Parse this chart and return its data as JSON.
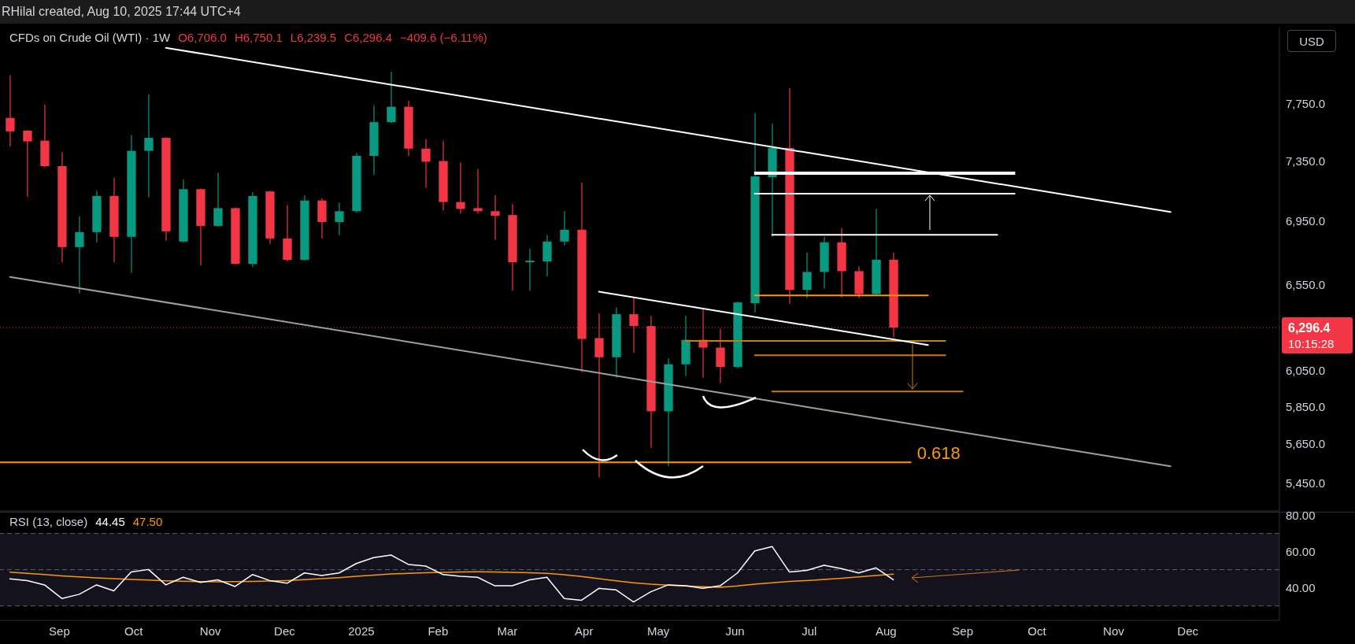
{
  "chart_data": [
    {
      "type": "candlestick",
      "title": "CFDs on Crude Oil (WTI) · 1W",
      "ylabel": "USD",
      "annotations": [
        "RHilal created, Aug 10, 2025 17:44 UTC+4",
        "O6,706.0",
        "H6,750.1",
        "L6,239.5",
        "C6,296.4",
        "−409.6 (−6.11%)",
        "10:15:28"
      ],
      "x": [
        "2024-08-12",
        "2024-08-19",
        "2024-08-26",
        "2024-09-02",
        "2024-09-09",
        "2024-09-16",
        "2024-09-23",
        "2024-09-30",
        "2024-10-07",
        "2024-10-14",
        "2024-10-21",
        "2024-10-28",
        "2024-11-04",
        "2024-11-11",
        "2024-11-18",
        "2024-11-25",
        "2024-12-02",
        "2024-12-09",
        "2024-12-16",
        "2024-12-23",
        "2024-12-30",
        "2025-01-06",
        "2025-01-13",
        "2025-01-20",
        "2025-01-27",
        "2025-02-03",
        "2025-02-10",
        "2025-02-17",
        "2025-02-24",
        "2025-03-03",
        "2025-03-10",
        "2025-03-17",
        "2025-03-24",
        "2025-03-31",
        "2025-04-07",
        "2025-04-14",
        "2025-04-21",
        "2025-04-28",
        "2025-05-05",
        "2025-05-12",
        "2025-05-19",
        "2025-05-26",
        "2025-06-02",
        "2025-06-09",
        "2025-06-16",
        "2025-06-23",
        "2025-06-30",
        "2025-07-07",
        "2025-07-14",
        "2025-07-21",
        "2025-07-28",
        "2025-08-04"
      ],
      "ohlc": [
        [
          7650,
          7960,
          7450,
          7555
        ],
        [
          7560,
          7565,
          7110,
          7485
        ],
        [
          7490,
          7745,
          7310,
          7315
        ],
        [
          7315,
          7410,
          6690,
          6785
        ],
        [
          6785,
          6980,
          6500,
          6880
        ],
        [
          6880,
          7150,
          6815,
          7115
        ],
        [
          7115,
          7235,
          6690,
          6850
        ],
        [
          6850,
          7530,
          6625,
          7420
        ],
        [
          7420,
          7820,
          7105,
          7510
        ],
        [
          7510,
          7515,
          6825,
          6885
        ],
        [
          6820,
          7225,
          6815,
          7160
        ],
        [
          7160,
          7165,
          6670,
          6920
        ],
        [
          6920,
          7270,
          6915,
          7035
        ],
        [
          7035,
          7040,
          6675,
          6680
        ],
        [
          6680,
          7140,
          6660,
          7115
        ],
        [
          7145,
          7150,
          6805,
          6840
        ],
        [
          6840,
          7055,
          6695,
          6705
        ],
        [
          6705,
          7120,
          6700,
          7085
        ],
        [
          7085,
          7100,
          6840,
          6945
        ],
        [
          6945,
          7070,
          6860,
          7015
        ],
        [
          7015,
          7405,
          7005,
          7385
        ],
        [
          7385,
          7740,
          7255,
          7620
        ],
        [
          7620,
          7985,
          7615,
          7730
        ],
        [
          7730,
          7775,
          7385,
          7435
        ],
        [
          7435,
          7500,
          7170,
          7345
        ],
        [
          7350,
          7490,
          7020,
          7075
        ],
        [
          7075,
          7340,
          7000,
          7030
        ],
        [
          7035,
          7295,
          7000,
          7015
        ],
        [
          7015,
          7120,
          6830,
          6985
        ],
        [
          6990,
          7060,
          6515,
          6690
        ],
        [
          6690,
          6775,
          6515,
          6700
        ],
        [
          6695,
          6860,
          6605,
          6820
        ],
        [
          6820,
          7015,
          6795,
          6895
        ],
        [
          6895,
          7205,
          6040,
          6230
        ],
        [
          6235,
          6380,
          5480,
          6125
        ],
        [
          6125,
          6415,
          6010,
          6375
        ],
        [
          6375,
          6475,
          6150,
          6305
        ],
        [
          6305,
          6365,
          5630,
          5825
        ],
        [
          5825,
          6120,
          5535,
          6085
        ],
        [
          6085,
          6365,
          6020,
          6225
        ],
        [
          6225,
          6410,
          6010,
          6180
        ],
        [
          6180,
          6290,
          5980,
          6070
        ],
        [
          6070,
          6450,
          6065,
          6445
        ],
        [
          6440,
          7685,
          6385,
          7245
        ],
        [
          7240,
          7610,
          6850,
          7440
        ],
        [
          7440,
          7865,
          6435,
          6520
        ],
        [
          6520,
          6750,
          6470,
          6630
        ],
        [
          6630,
          6850,
          6530,
          6815
        ],
        [
          6815,
          6905,
          6475,
          6635
        ],
        [
          6635,
          6665,
          6470,
          6495
        ],
        [
          6495,
          7030,
          6490,
          6706
        ],
        [
          6706.0,
          6750.1,
          6239.5,
          6296.4
        ]
      ],
      "colors": [
        "#f23645",
        "#f23645",
        "#f23645",
        "#f23645",
        "#089981",
        "#089981",
        "#f23645",
        "#089981",
        "#089981",
        "#f23645",
        "#089981",
        "#f23645",
        "#089981",
        "#f23645",
        "#089981",
        "#f23645",
        "#f23645",
        "#089981",
        "#f23645",
        "#089981",
        "#089981",
        "#089981",
        "#089981",
        "#f23645",
        "#f23645",
        "#f23645",
        "#f23645",
        "#f23645",
        "#f23645",
        "#f23645",
        "#089981",
        "#089981",
        "#089981",
        "#f23645",
        "#f23645",
        "#089981",
        "#f23645",
        "#f23645",
        "#089981",
        "#089981",
        "#f23645",
        "#f23645",
        "#089981",
        "#089981",
        "#089981",
        "#f23645",
        "#089981",
        "#089981",
        "#f23645",
        "#f23645",
        "#089981",
        "#f23645"
      ],
      "series": [
        {
          "type": "line",
          "color": "#ffffff",
          "x": [
            "2024-10-14",
            "2025-11-24"
          ],
          "values": [
            8165,
            7010
          ]
        },
        {
          "type": "line",
          "color": "#9e9e9e",
          "x": [
            "2024-08-12",
            "2025-11-24"
          ],
          "values": [
            6600,
            5535
          ]
        },
        {
          "type": "line",
          "color": "#ffffff",
          "x": [
            "2025-04-07",
            "2025-08-18"
          ],
          "values": [
            6510,
            6195
          ]
        },
        {
          "type": "line",
          "color": "#ffffff",
          "x": [
            "2025-06-09",
            "2025-09-22"
          ],
          "values": [
            7273,
            7273
          ]
        },
        {
          "type": "line",
          "color": "#ffffff",
          "x": [
            "2025-06-09",
            "2025-09-22"
          ],
          "values": [
            7262,
            7262
          ]
        },
        {
          "type": "line",
          "color": "#ffffff",
          "x": [
            "2025-06-09",
            "2025-09-22"
          ],
          "values": [
            7130,
            7130
          ]
        },
        {
          "type": "line",
          "color": "#ffffff",
          "x": [
            "2025-06-16",
            "2025-09-15"
          ],
          "values": [
            6863,
            6863
          ]
        },
        {
          "type": "line",
          "color": "#ff9800",
          "x": [
            "2025-06-09",
            "2025-08-18"
          ],
          "values": [
            6487,
            6487
          ]
        },
        {
          "type": "line",
          "color": "#c77c10",
          "x": [
            "2025-05-12",
            "2025-08-25"
          ],
          "values": [
            6219,
            6219
          ]
        },
        {
          "type": "line",
          "color": "#c77c10",
          "x": [
            "2025-06-09",
            "2025-08-25"
          ],
          "values": [
            6136,
            6136
          ]
        },
        {
          "type": "line",
          "color": "#c77c10",
          "x": [
            "2025-06-16",
            "2025-09-01"
          ],
          "values": [
            5933,
            5933
          ]
        },
        {
          "type": "line",
          "name": "0.618",
          "color": "#ff9800",
          "x": [
            "2024-08-08",
            "2025-08-11"
          ],
          "values": [
            5555,
            5555
          ]
        }
      ],
      "ref_lines": [
        {
          "axis": "y",
          "value": 6296.4,
          "label": "6,296.4",
          "color": "#f23645",
          "line_style": "dotted"
        }
      ],
      "log": "y",
      "xlim": [
        "2024-08-08",
        "2026-01-07"
      ],
      "ylim": [
        5310,
        8320
      ],
      "yticks": [
        {
          "value": 5450,
          "label": "5,450.0"
        },
        {
          "value": 5650,
          "label": "5,650.0"
        },
        {
          "value": 5850,
          "label": "5,850.0"
        },
        {
          "value": 6050,
          "label": "6,050.0"
        },
        {
          "value": 6550,
          "label": "6,550.0"
        },
        {
          "value": 6950,
          "label": "6,950.0"
        },
        {
          "value": 7350,
          "label": "7,350.0"
        },
        {
          "value": 7750,
          "label": "7,750.0"
        }
      ],
      "tick_labels": "y"
    },
    {
      "type": "line",
      "title": "RSI (13, close)",
      "annotations": [
        "44.45",
        "47.50"
      ],
      "x": [
        "2024-08-12",
        "2024-08-19",
        "2024-08-26",
        "2024-09-02",
        "2024-09-09",
        "2024-09-16",
        "2024-09-23",
        "2024-09-30",
        "2024-10-07",
        "2024-10-14",
        "2024-10-21",
        "2024-10-28",
        "2024-11-04",
        "2024-11-11",
        "2024-11-18",
        "2024-11-25",
        "2024-12-02",
        "2024-12-09",
        "2024-12-16",
        "2024-12-23",
        "2024-12-30",
        "2025-01-06",
        "2025-01-13",
        "2025-01-20",
        "2025-01-27",
        "2025-02-03",
        "2025-02-10",
        "2025-02-17",
        "2025-02-24",
        "2025-03-03",
        "2025-03-10",
        "2025-03-17",
        "2025-03-24",
        "2025-03-31",
        "2025-04-07",
        "2025-04-14",
        "2025-04-21",
        "2025-04-28",
        "2025-05-05",
        "2025-05-12",
        "2025-05-19",
        "2025-05-26",
        "2025-06-02",
        "2025-06-09",
        "2025-06-16",
        "2025-06-23",
        "2025-06-30",
        "2025-07-07",
        "2025-07-14",
        "2025-07-21",
        "2025-07-28",
        "2025-08-04"
      ],
      "series": [
        {
          "color": "#ffffff",
          "values": [
            44.9,
            44.0,
            41.6,
            34.1,
            36.4,
            41.6,
            38.3,
            48.7,
            50.1,
            41.6,
            45.8,
            43.0,
            44.4,
            40.7,
            47.3,
            44.0,
            42.5,
            48.2,
            46.8,
            48.2,
            53.4,
            56.7,
            58.1,
            52.9,
            52.0,
            47.3,
            46.3,
            45.8,
            41.1,
            41.1,
            44.4,
            45.8,
            34.1,
            33.1,
            39.7,
            38.8,
            32.2,
            37.8,
            41.6,
            41.1,
            39.7,
            41.1,
            48.2,
            60.4,
            62.8,
            48.7,
            49.6,
            52.4,
            50.6,
            48.2,
            51.0,
            44.45
          ]
        },
        {
          "color": "#ff9800",
          "values": [
            48.6,
            48.0,
            47.3,
            46.6,
            46.0,
            45.5,
            45.0,
            44.6,
            44.3,
            43.9,
            43.6,
            43.4,
            43.3,
            43.4,
            43.5,
            43.7,
            44.0,
            44.5,
            45.0,
            45.6,
            46.3,
            47.0,
            47.6,
            48.0,
            48.3,
            48.5,
            48.7,
            48.8,
            48.7,
            48.5,
            48.3,
            48.0,
            47.2,
            46.2,
            45.0,
            43.8,
            42.8,
            42.0,
            41.5,
            41.0,
            40.6,
            40.3,
            41.0,
            42.0,
            42.8,
            43.5,
            44.0,
            44.6,
            45.3,
            46.0,
            46.8,
            47.5
          ]
        }
      ],
      "bands": [
        {
          "axis": "y",
          "from": 30,
          "to": 70,
          "color": "#15121f"
        }
      ],
      "ref_lines": [
        {
          "axis": "y",
          "value": 70,
          "color": "#5d606b",
          "line_style": "dashed"
        },
        {
          "axis": "y",
          "value": 50,
          "color": "#5d606b",
          "line_style": "dashed"
        },
        {
          "axis": "y",
          "value": 30,
          "color": "#5d606b",
          "line_style": "dashed"
        }
      ],
      "xlim": [
        "2024-08-08",
        "2026-01-07"
      ],
      "xticks": [
        {
          "value": "2024-09-01",
          "label": "Sep"
        },
        {
          "value": "2024-10-01",
          "label": "Oct"
        },
        {
          "value": "2024-11-01",
          "label": "Nov"
        },
        {
          "value": "2024-12-01",
          "label": "Dec"
        },
        {
          "value": "2025-01-01",
          "label": "2025"
        },
        {
          "value": "2025-02-01",
          "label": "Feb"
        },
        {
          "value": "2025-03-01",
          "label": "Mar"
        },
        {
          "value": "2025-04-01",
          "label": "Apr"
        },
        {
          "value": "2025-05-01",
          "label": "May"
        },
        {
          "value": "2025-06-01",
          "label": "Jun"
        },
        {
          "value": "2025-07-01",
          "label": "Jul"
        },
        {
          "value": "2025-08-01",
          "label": "Aug"
        },
        {
          "value": "2025-09-01",
          "label": "Sep"
        },
        {
          "value": "2025-10-01",
          "label": "Oct"
        },
        {
          "value": "2025-11-01",
          "label": "Nov"
        },
        {
          "value": "2025-12-01",
          "label": "Dec"
        }
      ],
      "ylim": [
        22,
        82
      ],
      "yticks": [
        {
          "value": 40,
          "label": "40.00"
        },
        {
          "value": 60,
          "label": "60.00"
        },
        {
          "value": 80,
          "label": "80.00"
        }
      ]
    }
  ]
}
